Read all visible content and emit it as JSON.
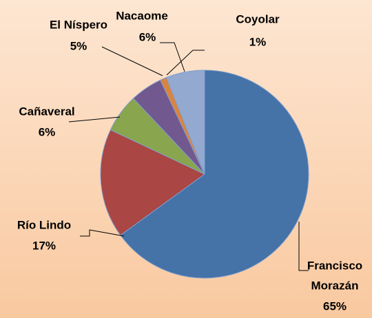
{
  "chart_data": {
    "type": "pie",
    "categories": [
      "Francisco Morazán",
      "Río Lindo",
      "Cañaveral",
      "El Níspero",
      "Coyolar",
      "Nacaome"
    ],
    "values": [
      65,
      17,
      6,
      5,
      1,
      6
    ],
    "value_labels": [
      "65%",
      "17%",
      "6%",
      "5%",
      "1%",
      "6%"
    ],
    "colors": [
      "#4572a7",
      "#aa4643",
      "#89a54e",
      "#71588f",
      "#db843d",
      "#93a9cf"
    ]
  }
}
